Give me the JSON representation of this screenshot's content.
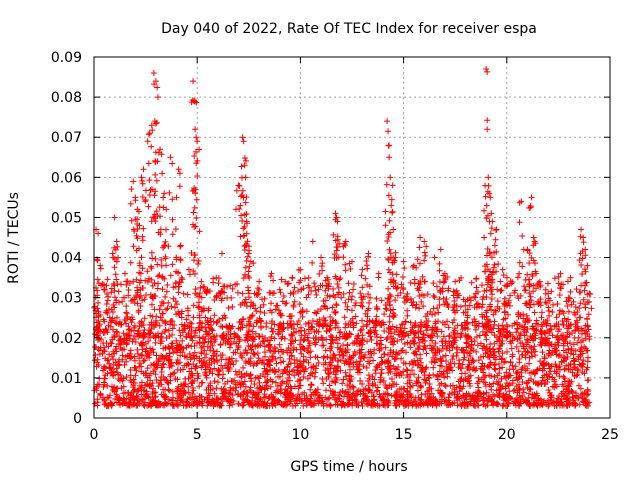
{
  "chart_data": {
    "type": "scatter",
    "title": "Day 040 of 2022, Rate Of TEC Index for receiver espa",
    "xlabel": "GPS time / hours",
    "ylabel": "ROTI / TECUs",
    "xlim": [
      0,
      25
    ],
    "ylim": [
      0,
      0.09
    ],
    "x_ticks": [
      0,
      5,
      10,
      15,
      20,
      25
    ],
    "x_tick_labels": [
      "0",
      "5",
      "10",
      "15",
      "20",
      "25"
    ],
    "y_ticks": [
      0,
      0.01,
      0.02,
      0.03,
      0.04,
      0.05,
      0.06,
      0.07,
      0.08,
      0.09
    ],
    "y_tick_labels": [
      "0",
      "0.01",
      "0.02",
      "0.03",
      "0.04",
      "0.05",
      "0.06",
      "0.07",
      "0.08",
      "0.09"
    ],
    "grid": true,
    "marker": "+",
    "marker_color": "#ff0000",
    "series": [
      {
        "name": "ROTI",
        "points": [
          [
            0.1,
            0.047
          ],
          [
            0.2,
            0.046
          ],
          [
            0.3,
            0.038
          ],
          [
            0.6,
            0.033
          ],
          [
            0.9,
            0.041
          ],
          [
            1.0,
            0.05
          ],
          [
            1.1,
            0.044
          ],
          [
            1.5,
            0.036
          ],
          [
            1.9,
            0.059
          ],
          [
            2.0,
            0.055
          ],
          [
            2.1,
            0.052
          ],
          [
            2.2,
            0.048
          ],
          [
            2.3,
            0.06
          ],
          [
            2.4,
            0.062
          ],
          [
            2.6,
            0.069
          ],
          [
            2.7,
            0.071
          ],
          [
            2.8,
            0.073
          ],
          [
            2.9,
            0.086
          ],
          [
            3.0,
            0.084
          ],
          [
            3.1,
            0.08
          ],
          [
            2.95,
            0.074
          ],
          [
            3.2,
            0.067
          ],
          [
            3.3,
            0.061
          ],
          [
            3.4,
            0.056
          ],
          [
            3.5,
            0.052
          ],
          [
            3.7,
            0.065
          ],
          [
            4.0,
            0.055
          ],
          [
            4.1,
            0.062
          ],
          [
            4.2,
            0.043
          ],
          [
            4.6,
            0.037
          ],
          [
            4.8,
            0.084
          ],
          [
            4.85,
            0.079
          ],
          [
            4.9,
            0.072
          ],
          [
            4.95,
            0.07
          ],
          [
            5.0,
            0.069
          ],
          [
            5.2,
            0.034
          ],
          [
            5.5,
            0.032
          ],
          [
            6.2,
            0.041
          ],
          [
            6.6,
            0.033
          ],
          [
            7.0,
            0.058
          ],
          [
            7.2,
            0.07
          ],
          [
            7.25,
            0.069
          ],
          [
            7.3,
            0.063
          ],
          [
            7.35,
            0.06
          ],
          [
            7.4,
            0.049
          ],
          [
            7.5,
            0.041
          ],
          [
            7.6,
            0.039
          ],
          [
            8.0,
            0.034
          ],
          [
            8.6,
            0.036
          ],
          [
            9.0,
            0.032
          ],
          [
            9.6,
            0.035
          ],
          [
            10.0,
            0.037
          ],
          [
            10.6,
            0.044
          ],
          [
            11.0,
            0.04
          ],
          [
            11.3,
            0.035
          ],
          [
            11.7,
            0.051
          ],
          [
            11.75,
            0.05
          ],
          [
            11.8,
            0.049
          ],
          [
            12.2,
            0.044
          ],
          [
            12.5,
            0.039
          ],
          [
            13.0,
            0.037
          ],
          [
            13.3,
            0.041
          ],
          [
            13.8,
            0.036
          ],
          [
            14.2,
            0.074
          ],
          [
            14.3,
            0.065
          ],
          [
            14.35,
            0.06
          ],
          [
            14.4,
            0.053
          ],
          [
            14.5,
            0.047
          ],
          [
            14.6,
            0.04
          ],
          [
            15.0,
            0.039
          ],
          [
            15.5,
            0.038
          ],
          [
            15.8,
            0.045
          ],
          [
            16.0,
            0.044
          ],
          [
            16.5,
            0.04
          ],
          [
            16.8,
            0.042
          ],
          [
            17.0,
            0.036
          ],
          [
            17.5,
            0.034
          ],
          [
            18.0,
            0.029
          ],
          [
            18.5,
            0.031
          ],
          [
            18.9,
            0.045
          ],
          [
            19.0,
            0.087
          ],
          [
            19.05,
            0.072
          ],
          [
            19.1,
            0.06
          ],
          [
            19.15,
            0.056
          ],
          [
            19.2,
            0.055
          ],
          [
            19.25,
            0.051
          ],
          [
            19.3,
            0.049
          ],
          [
            19.5,
            0.047
          ],
          [
            19.8,
            0.037
          ],
          [
            20.0,
            0.033
          ],
          [
            20.6,
            0.036
          ],
          [
            20.7,
            0.054
          ],
          [
            21.0,
            0.042
          ],
          [
            21.2,
            0.055
          ],
          [
            21.3,
            0.045
          ],
          [
            21.35,
            0.044
          ],
          [
            21.6,
            0.034
          ],
          [
            22.0,
            0.031
          ],
          [
            22.6,
            0.036
          ],
          [
            23.0,
            0.03
          ],
          [
            23.6,
            0.047
          ],
          [
            23.7,
            0.045
          ],
          [
            23.8,
            0.042
          ],
          [
            24.0,
            0.031
          ]
        ],
        "baseline_band": [
          0.003,
          0.02
        ],
        "spike_threshold_typical": 0.035
      }
    ]
  }
}
